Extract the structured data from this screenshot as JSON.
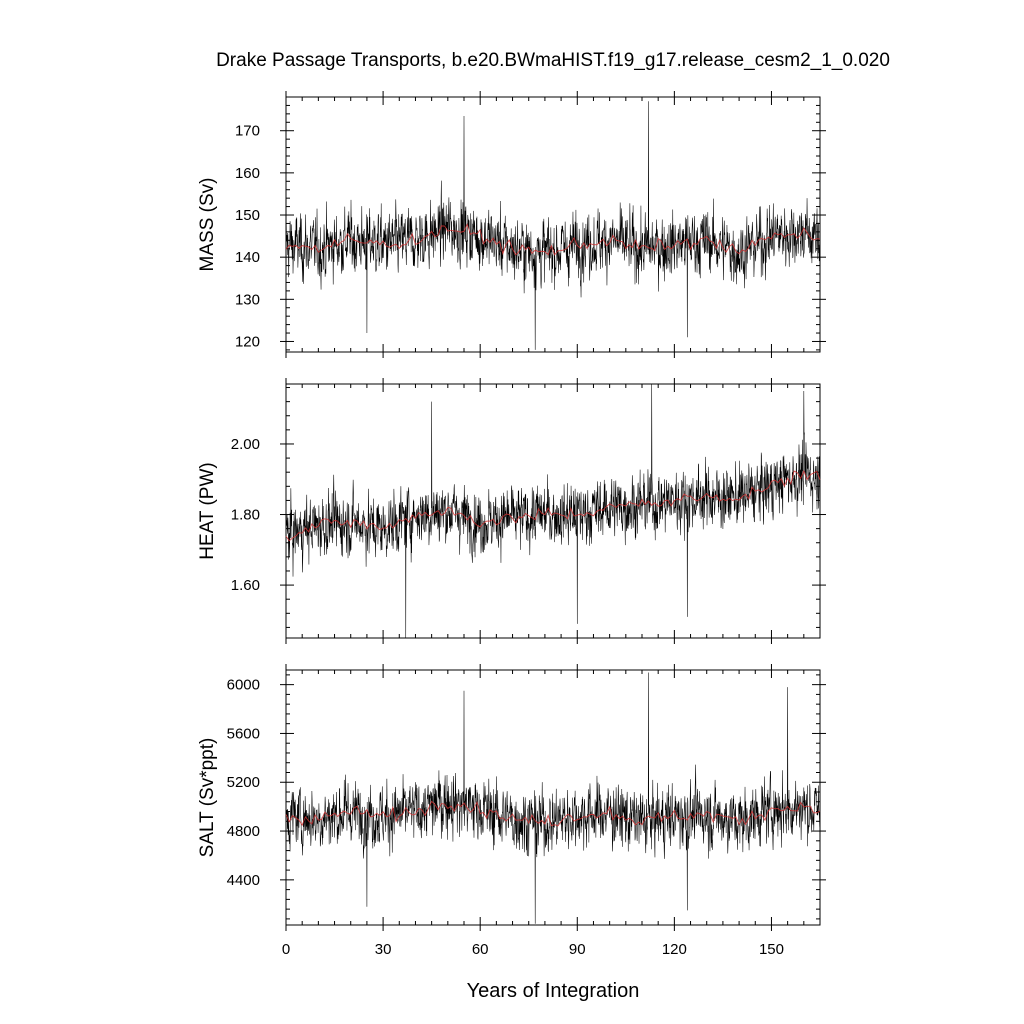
{
  "chart_data": {
    "type": "line",
    "title": "Drake Passage Transports, b.e20.BWmaHIST.f19_g17.release_cesm2_1_0.020",
    "xlabel": "Years of Integration",
    "xlim": [
      0,
      165
    ],
    "xticks": [
      0,
      30,
      60,
      90,
      120,
      150
    ],
    "xtick_labels": [
      "0",
      "30",
      "60",
      "90",
      "120",
      "150"
    ],
    "grid": false,
    "series_colors": {
      "monthly": "#000000",
      "annual": "#d03030"
    },
    "panels": [
      {
        "id": "mass",
        "ylabel": "MASS (Sv)",
        "ylim": [
          117.5,
          178
        ],
        "yticks": [
          120,
          130,
          140,
          150,
          160,
          170
        ],
        "ytick_labels": [
          "120",
          "130",
          "140",
          "150",
          "160",
          "170"
        ],
        "annual_mean_years": [
          0,
          10,
          20,
          30,
          40,
          50,
          60,
          70,
          80,
          90,
          100,
          110,
          120,
          130,
          140,
          150,
          160,
          165
        ],
        "annual_mean_values": [
          143,
          142,
          144,
          143,
          144,
          147,
          145,
          142,
          141,
          143,
          144,
          142,
          143,
          144,
          141,
          145,
          146,
          144
        ],
        "variability": 6.5,
        "extremes": [
          [
            77,
            118
          ],
          [
            112,
            177
          ],
          [
            55,
            173.5
          ],
          [
            25,
            122
          ],
          [
            124,
            121
          ]
        ]
      },
      {
        "id": "heat",
        "ylabel": "HEAT (PW)",
        "ylim": [
          1.45,
          2.17
        ],
        "yticks": [
          1.6,
          1.8,
          2.0
        ],
        "ytick_labels": [
          "1.60",
          "1.80",
          "2.00"
        ],
        "annual_mean_years": [
          0,
          10,
          20,
          30,
          40,
          50,
          60,
          70,
          80,
          90,
          100,
          110,
          120,
          130,
          140,
          150,
          160,
          165
        ],
        "annual_mean_values": [
          1.74,
          1.77,
          1.78,
          1.76,
          1.8,
          1.81,
          1.78,
          1.79,
          1.8,
          1.8,
          1.82,
          1.83,
          1.84,
          1.85,
          1.85,
          1.88,
          1.92,
          1.9
        ],
        "variability": 0.075,
        "extremes": [
          [
            37,
            1.45
          ],
          [
            113,
            2.17
          ],
          [
            90,
            1.49
          ],
          [
            124,
            1.51
          ],
          [
            160,
            2.15
          ],
          [
            45,
            2.12
          ]
        ]
      },
      {
        "id": "salt",
        "ylabel": "SALT (Sv*ppt)",
        "ylim": [
          4030,
          6120
        ],
        "yticks": [
          4400,
          4800,
          5200,
          5600,
          6000
        ],
        "ytick_labels": [
          "4400",
          "4800",
          "5200",
          "5600",
          "6000"
        ],
        "annual_mean_years": [
          0,
          10,
          20,
          30,
          40,
          50,
          60,
          70,
          80,
          90,
          100,
          110,
          120,
          130,
          140,
          150,
          160,
          165
        ],
        "annual_mean_values": [
          4920,
          4900,
          4960,
          4920,
          4960,
          5050,
          4980,
          4900,
          4870,
          4930,
          4950,
          4880,
          4920,
          4940,
          4880,
          4980,
          5000,
          4960
        ],
        "variability": 220,
        "extremes": [
          [
            77,
            4040
          ],
          [
            112,
            6100
          ],
          [
            55,
            5950
          ],
          [
            25,
            4180
          ],
          [
            124,
            4150
          ],
          [
            155,
            5980
          ]
        ]
      }
    ]
  }
}
